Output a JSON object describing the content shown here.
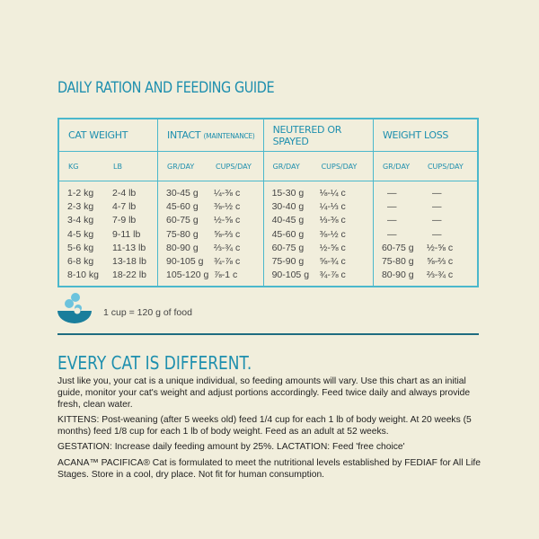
{
  "title": "DAILY RATION AND FEEDING GUIDE",
  "table": {
    "headers": {
      "weight": "CAT WEIGHT",
      "intact": "INTACT",
      "intact_sub": "(MAINTENANCE)",
      "neutered": "NEUTERED OR SPAYED",
      "loss": "WEIGHT LOSS"
    },
    "subheaders": {
      "kg": "KG",
      "lb": "LB",
      "gr": "GR/DAY",
      "cups": "CUPS/DAY"
    },
    "rows": [
      {
        "kg": "1-2 kg",
        "lb": "2-4 lb",
        "ig": "30-45 g",
        "ic": "¼-⅜ c",
        "ng": "15-30 g",
        "nc": "⅛-¼ c",
        "wg": "—",
        "wc": "—"
      },
      {
        "kg": "2-3 kg",
        "lb": "4-7 lb",
        "ig": "45-60 g",
        "ic": "⅜-½ c",
        "ng": "30-40 g",
        "nc": "¼-⅓ c",
        "wg": "—",
        "wc": "—"
      },
      {
        "kg": "3-4 kg",
        "lb": "7-9 lb",
        "ig": "60-75 g",
        "ic": "½-⅝ c",
        "ng": "40-45 g",
        "nc": "⅓-⅜ c",
        "wg": "—",
        "wc": "—"
      },
      {
        "kg": "4-5 kg",
        "lb": "9-11 lb",
        "ig": "75-80 g",
        "ic": "⅝-⅔ c",
        "ng": "45-60 g",
        "nc": "⅜-½ c",
        "wg": "—",
        "wc": "—"
      },
      {
        "kg": "5-6 kg",
        "lb": "11-13 lb",
        "ig": "80-90 g",
        "ic": "⅔-¾ c",
        "ng": "60-75 g",
        "nc": "½-⅝ c",
        "wg": "60-75 g",
        "wc": "½-⅝ c"
      },
      {
        "kg": "6-8 kg",
        "lb": "13-18 lb",
        "ig": "90-105 g",
        "ic": "¾-⅞ c",
        "ng": "75-90 g",
        "nc": "⅝-¾ c",
        "wg": "75-80 g",
        "wc": "⅝-⅔ c"
      },
      {
        "kg": "8-10 kg",
        "lb": "18-22 lb",
        "ig": "105-120 g",
        "ic": "⅞-1 c",
        "ng": "90-105 g",
        "nc": "¾-⅞ c",
        "wg": "80-90 g",
        "wc": "⅔-¾ c"
      }
    ]
  },
  "cup_note": "1 cup = 120 g of food",
  "heading2": "EVERY CAT IS DIFFERENT.",
  "paragraphs": [
    "Just like you, your cat is a unique individual, so feeding amounts will vary. Use this chart as an initial guide, monitor your cat's weight and adjust portions accordingly. Feed twice daily and always provide fresh, clean water.",
    "KITTENS: Post-weaning (after 5 weeks old) feed 1/4 cup for each 1 lb of body weight. At 20 weeks (5 months) feed 1/8 cup for each 1 lb of body weight. Feed as an adult at 52 weeks.",
    "GESTATION: Increase daily feeding amount by 25%. LACTATION: Feed 'free choice'",
    "ACANA™ PACIFICA® Cat is formulated to meet the nutritional levels established by FEDIAF for All Life Stages. Store in a cool, dry place. Not fit for human consumption."
  ],
  "colors": {
    "accent": "#1e8fae",
    "border": "#4bb8cc",
    "background": "#f1eedc"
  }
}
